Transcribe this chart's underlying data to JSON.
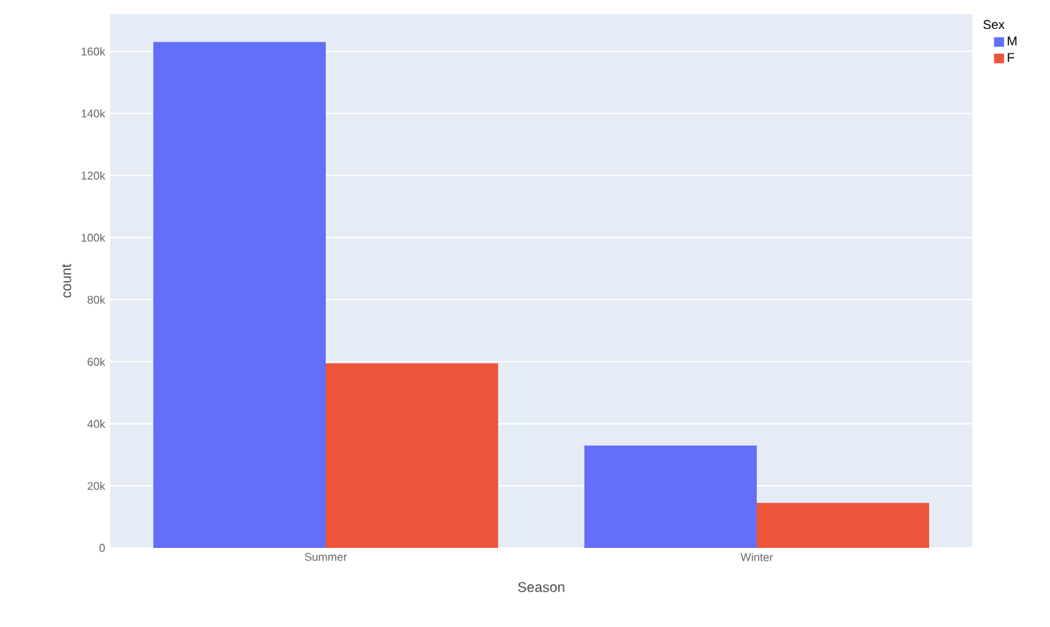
{
  "chart_data": {
    "type": "bar",
    "xlabel": "Season",
    "ylabel": "count",
    "legend_title": "Sex",
    "categories": [
      "Summer",
      "Winter"
    ],
    "series": [
      {
        "name": "M",
        "color": "#636efa",
        "values": [
          163000,
          33000
        ]
      },
      {
        "name": "F",
        "color": "#ef553b",
        "values": [
          59500,
          14500
        ]
      }
    ],
    "ylim": [
      0,
      172000
    ],
    "yticks": [
      0,
      {
        "value": 20000,
        "label": "20k"
      },
      {
        "value": 40000,
        "label": "40k"
      },
      {
        "value": 60000,
        "label": "60k"
      },
      {
        "value": 80000,
        "label": "80k"
      },
      {
        "value": 100000,
        "label": "100k"
      },
      {
        "value": 120000,
        "label": "120k"
      },
      {
        "value": 140000,
        "label": "140k"
      },
      {
        "value": 160000,
        "label": "160k"
      }
    ],
    "grid": "y",
    "legend": "top right"
  }
}
